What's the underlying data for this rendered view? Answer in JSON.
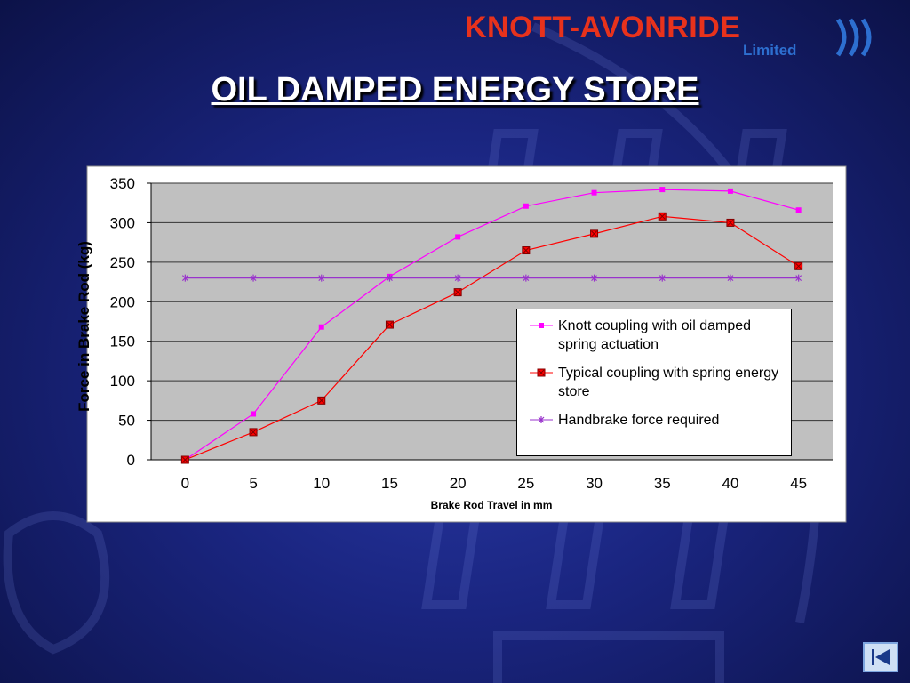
{
  "logo": {
    "name": "KNOTT-AVONRIDE",
    "suffix": "Limited"
  },
  "slide_title": "OIL DAMPED ENERGY STORE",
  "chart_data": {
    "type": "line",
    "x_label": "Brake Rod Travel in mm",
    "y_label": "Force in Brake Rod (kg)",
    "categories": [
      "0",
      "5",
      "10",
      "15",
      "20",
      "25",
      "30",
      "35",
      "40",
      "45"
    ],
    "series": [
      {
        "name": "Knott coupling with oil damped spring actuation",
        "color": "#ff00ff",
        "marker": "square",
        "values": [
          0,
          58,
          168,
          232,
          282,
          321,
          338,
          342,
          340,
          316
        ]
      },
      {
        "name": "Typical coupling with spring energy store",
        "color": "#ff0000",
        "marker": "crossed-square",
        "values": [
          0,
          35,
          75,
          171,
          212,
          265,
          286,
          308,
          300,
          245
        ]
      },
      {
        "name": "Handbrake force required",
        "color": "#9933cc",
        "marker": "star",
        "values": [
          230,
          230,
          230,
          230,
          230,
          230,
          230,
          230,
          230,
          230
        ]
      }
    ],
    "ylim": [
      0,
      350
    ],
    "yticks": [
      0,
      50,
      100,
      150,
      200,
      250,
      300,
      350
    ],
    "grid": true,
    "plot_background": "#c0c0c0"
  }
}
